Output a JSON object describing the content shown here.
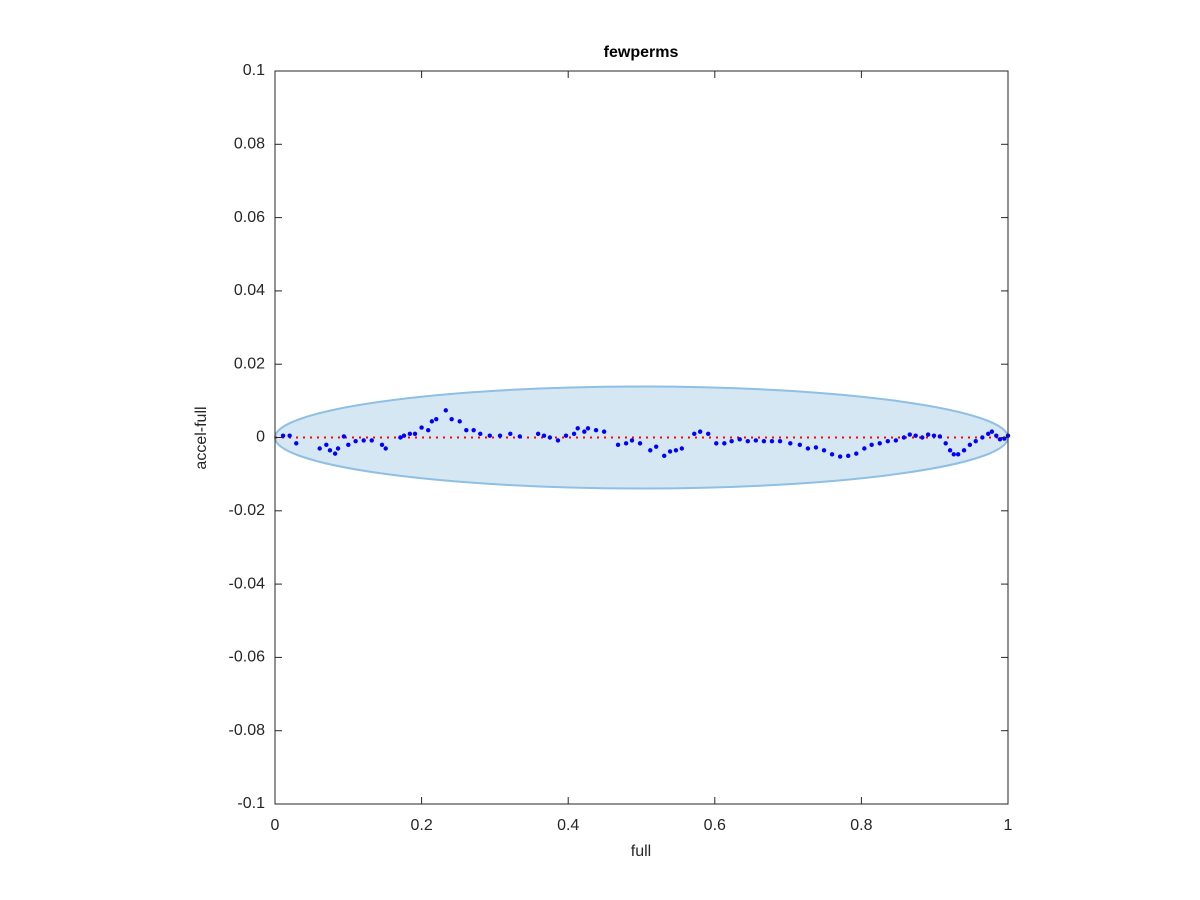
{
  "chart_data": {
    "type": "scatter",
    "title": "fewperms",
    "x_label": "full",
    "y_label": "accel-full",
    "x": [
      0.011,
      0.02,
      0.029,
      0.061,
      0.07,
      0.075,
      0.082,
      0.086,
      0.094,
      0.1,
      0.11,
      0.121,
      0.132,
      0.146,
      0.151,
      0.171,
      0.176,
      0.184,
      0.191,
      0.2,
      0.209,
      0.214,
      0.22,
      0.233,
      0.241,
      0.252,
      0.261,
      0.271,
      0.28,
      0.293,
      0.307,
      0.321,
      0.334,
      0.359,
      0.367,
      0.375,
      0.386,
      0.397,
      0.408,
      0.413,
      0.422,
      0.427,
      0.438,
      0.449,
      0.468,
      0.479,
      0.487,
      0.498,
      0.512,
      0.52,
      0.531,
      0.539,
      0.547,
      0.555,
      0.572,
      0.58,
      0.591,
      0.602,
      0.613,
      0.623,
      0.634,
      0.645,
      0.656,
      0.667,
      0.678,
      0.689,
      0.703,
      0.716,
      0.727,
      0.738,
      0.749,
      0.76,
      0.771,
      0.782,
      0.793,
      0.804,
      0.814,
      0.825,
      0.836,
      0.847,
      0.858,
      0.866,
      0.874,
      0.883,
      0.891,
      0.899,
      0.907,
      0.915,
      0.921,
      0.926,
      0.932,
      0.94,
      0.948,
      0.956,
      0.965,
      0.973,
      0.978,
      0.984,
      0.989,
      0.995,
      1.0
    ],
    "values": [
      0.0005,
      0.0005,
      -0.0016,
      -0.003,
      -0.002,
      -0.0035,
      -0.0044,
      -0.003,
      0.0003,
      -0.002,
      -0.001,
      -0.0008,
      -0.0008,
      -0.002,
      -0.003,
      0,
      0.0005,
      0.001,
      0.001,
      0.0027,
      0.002,
      0.0044,
      0.005,
      0.0074,
      0.005,
      0.0044,
      0.002,
      0.002,
      0.001,
      0.0005,
      0.0005,
      0.001,
      0.0003,
      0.001,
      0.0005,
      0,
      -0.0008,
      0.0005,
      0.001,
      0.0025,
      0.0016,
      0.0025,
      0.002,
      0.0016,
      -0.002,
      -0.0016,
      -0.0008,
      -0.0016,
      -0.0035,
      -0.0025,
      -0.005,
      -0.0038,
      -0.0035,
      -0.003,
      0.001,
      0.0016,
      0.001,
      -0.0016,
      -0.0016,
      -0.001,
      -0.0005,
      -0.001,
      -0.0008,
      -0.001,
      -0.001,
      -0.001,
      -0.0016,
      -0.002,
      -0.003,
      -0.0027,
      -0.0035,
      -0.0046,
      -0.0052,
      -0.005,
      -0.0044,
      -0.003,
      -0.002,
      -0.0016,
      -0.001,
      -0.0008,
      0,
      0.0008,
      0.0005,
      0,
      0.0008,
      0.0005,
      0.0003,
      -0.0016,
      -0.0035,
      -0.0046,
      -0.0046,
      -0.0035,
      -0.002,
      -0.001,
      0,
      0.001,
      0.0016,
      0.0005,
      -0.0005,
      -0.0003,
      0.0005
    ],
    "color": "#0000ff",
    "ellipse": {
      "cx": 0.5,
      "cy": 0,
      "rx": 0.5,
      "ry": 0.0139,
      "fill": "#d6e7f4",
      "stroke": "#8fbfe2"
    },
    "reference_line": {
      "y": 0,
      "color": "#ff0000"
    },
    "xlim": [
      0,
      1
    ],
    "xticks": [
      0,
      0.2,
      0.4,
      0.6,
      0.8,
      1
    ],
    "ylim": [
      -0.1,
      0.1
    ],
    "yticks": [
      -0.1,
      -0.08,
      -0.06,
      -0.04,
      -0.02,
      0,
      0.02,
      0.04,
      0.06,
      0.08,
      0.1
    ]
  }
}
